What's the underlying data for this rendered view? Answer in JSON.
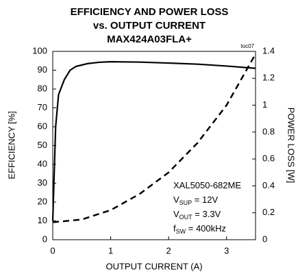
{
  "chart_data": {
    "type": "line",
    "title": [
      "EFFICIENCY AND POWER LOSS",
      "vs. OUTPUT CURRENT",
      "MAX424A03FLA+"
    ],
    "tag": "toc07",
    "x_label": "OUTPUT CURRENT (A)",
    "y_label": "EFFICIENCY [%]",
    "y2_label": "POWER LOSS [W]",
    "xlim": [
      0,
      3.5
    ],
    "xticks": [
      0,
      1,
      2,
      3
    ],
    "ylim": [
      0,
      100
    ],
    "yticks": [
      0,
      10,
      20,
      30,
      40,
      50,
      60,
      70,
      80,
      90,
      100
    ],
    "y2lim": [
      0,
      1.4
    ],
    "y2ticks": [
      0,
      0.2,
      0.4,
      0.6,
      0.8,
      1,
      1.2,
      1.4
    ],
    "series": [
      {
        "color": "#000000",
        "dash": "solid",
        "axis": "y",
        "x": [
          0,
          0.05,
          0.1,
          0.2,
          0.3,
          0.4,
          0.6,
          0.8,
          1.0,
          1.5,
          2.0,
          2.5,
          3.0,
          3.5
        ],
        "values": [
          10,
          60,
          77,
          85,
          90,
          92,
          93.5,
          94.2,
          94.5,
          94.3,
          93.8,
          93.2,
          92.2,
          91
        ]
      },
      {
        "color": "#000000",
        "dash": "dashed",
        "axis": "y2",
        "x": [
          0,
          0.5,
          1.0,
          1.5,
          2.0,
          2.5,
          3.0,
          3.5
        ],
        "values": [
          0.13,
          0.15,
          0.22,
          0.34,
          0.5,
          0.72,
          1.0,
          1.38
        ]
      }
    ],
    "annotations": [
      {
        "text": "XAL5050-682ME"
      },
      {
        "text": "V",
        "sub": "SUP",
        "rest": " = 12V"
      },
      {
        "text": "V",
        "sub": "OUT",
        "rest": " = 3.3V"
      },
      {
        "text": "f",
        "sub": "SW",
        "rest": " = 400kHz"
      }
    ]
  }
}
